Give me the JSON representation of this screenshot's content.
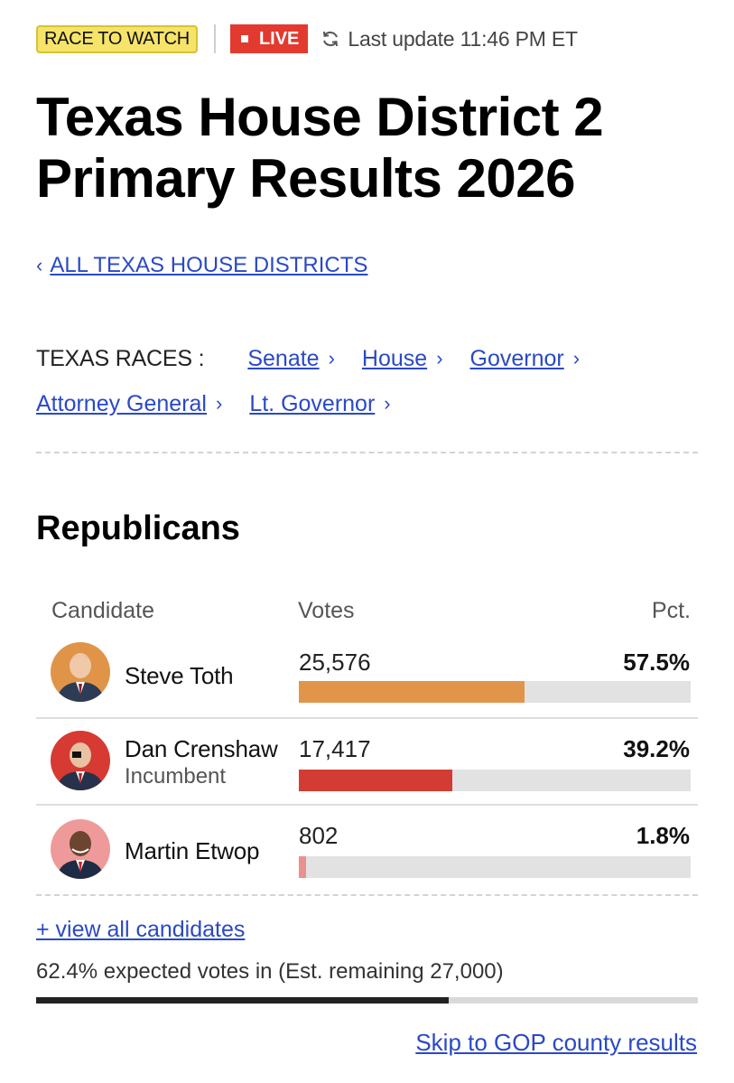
{
  "header": {
    "race_badge": "RACE TO WATCH",
    "live_badge": "LIVE",
    "last_update": "Last update 11:46 PM ET",
    "icons": {
      "refresh": "refresh-icon",
      "live": "live-dot-icon"
    }
  },
  "page": {
    "title": "Texas House District 2 Primary Results 2026",
    "back_link": "ALL TEXAS HOUSE DISTRICTS"
  },
  "races": {
    "label": "TEXAS RACES :",
    "links": [
      "Senate",
      "House",
      "Governor",
      "Attorney General",
      "Lt. Governor"
    ]
  },
  "results": {
    "party": "Republicans",
    "columns": {
      "candidate": "Candidate",
      "votes": "Votes",
      "pct": "Pct."
    },
    "candidates": [
      {
        "name": "Steve Toth",
        "status": "",
        "votes": "25,576",
        "pct": "57.5%",
        "share": 0.575,
        "color": "#e0954a"
      },
      {
        "name": "Dan Crenshaw",
        "status": "Incumbent",
        "votes": "17,417",
        "pct": "39.2%",
        "share": 0.392,
        "color": "#d23c33"
      },
      {
        "name": "Martin Etwop",
        "status": "",
        "votes": "802",
        "pct": "1.8%",
        "share": 0.018,
        "color": "#ec8f8f"
      }
    ],
    "view_all": "+ view all candidates",
    "expected_text": "62.4% expected votes in (Est. remaining 27,000)",
    "expected_share": 0.624,
    "skip_link": "Skip to GOP county results"
  },
  "colors": {
    "link": "#2a49c6",
    "live": "#e23a2f",
    "watch_badge": "#f6e36a"
  }
}
